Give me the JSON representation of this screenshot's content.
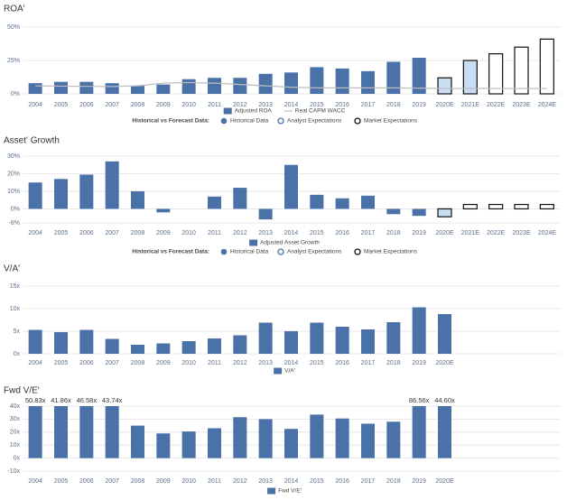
{
  "chart_data": [
    {
      "type": "bar",
      "title": "ROA'",
      "categories": [
        "2004",
        "2005",
        "2006",
        "2007",
        "2008",
        "2009",
        "2010",
        "2011",
        "2012",
        "2013",
        "2014",
        "2015",
        "2016",
        "2017",
        "2018",
        "2019",
        "2020E",
        "2021E",
        "2022E",
        "2023E",
        "2024E"
      ],
      "series": [
        {
          "name": "Adjusted ROA",
          "type": "bar",
          "color": "#4a71a8",
          "values": [
            8,
            9,
            9,
            8,
            6,
            7,
            11,
            12,
            12,
            15,
            16,
            20,
            19,
            17,
            24,
            27,
            12,
            25,
            30,
            35,
            41
          ],
          "bar_styles": [
            "historical",
            "historical",
            "historical",
            "historical",
            "historical",
            "historical",
            "historical",
            "historical",
            "historical",
            "historical",
            "historical",
            "historical",
            "historical",
            "historical",
            "historical",
            "historical",
            "analyst",
            "analyst",
            "market",
            "market",
            "market"
          ]
        },
        {
          "name": "Real CAPM WACC",
          "type": "line",
          "color": "#bdbdbd",
          "values": [
            6,
            5.8,
            5.6,
            5.5,
            6,
            8,
            8.5,
            8,
            7,
            6,
            5,
            4.5,
            4.5,
            4.5,
            4.5,
            4.3,
            4,
            4,
            4,
            4,
            4
          ]
        }
      ],
      "ylim": [
        0,
        50
      ],
      "yticks": [
        {
          "value": 0,
          "label": "0%"
        },
        {
          "value": 25,
          "label": "25%"
        },
        {
          "value": 50,
          "label": "50%"
        }
      ],
      "grid": true,
      "forecast_legend": {
        "label": "Historical vs Forecast Data:",
        "items": [
          "Historical Data",
          "Analyst Expectations",
          "Market Expectations"
        ]
      }
    },
    {
      "type": "bar",
      "title": "Asset' Growth",
      "categories": [
        "2004",
        "2005",
        "2006",
        "2007",
        "2008",
        "2009",
        "2010",
        "2011",
        "2012",
        "2013",
        "2014",
        "2015",
        "2016",
        "2017",
        "2018",
        "2019",
        "2020E",
        "2021E",
        "2022E",
        "2023E",
        "2024E"
      ],
      "series": [
        {
          "name": "Adjusted Asset Growth",
          "type": "bar",
          "color": "#4a71a8",
          "values": [
            15,
            17,
            19.5,
            27,
            10,
            -2,
            0,
            7,
            12,
            -6,
            25,
            8,
            6,
            7.5,
            -3,
            -4,
            -4.5,
            2.5,
            2.5,
            2.5,
            2.5
          ],
          "bar_styles": [
            "historical",
            "historical",
            "historical",
            "historical",
            "historical",
            "historical",
            "historical",
            "historical",
            "historical",
            "historical",
            "historical",
            "historical",
            "historical",
            "historical",
            "historical",
            "historical",
            "analyst",
            "market",
            "market",
            "market",
            "market"
          ]
        }
      ],
      "ylim": [
        -8,
        30
      ],
      "yticks": [
        {
          "value": -8,
          "label": "-8%"
        },
        {
          "value": 0,
          "label": "0%"
        },
        {
          "value": 10,
          "label": "10%"
        },
        {
          "value": 20,
          "label": "20%"
        },
        {
          "value": 30,
          "label": "30%"
        }
      ],
      "grid": true,
      "forecast_legend": {
        "label": "Historical vs Forecast Data:",
        "items": [
          "Historical Data",
          "Analyst Expectations",
          "Market Expectations"
        ]
      }
    },
    {
      "type": "bar",
      "title": "V/A'",
      "categories": [
        "2004",
        "2005",
        "2006",
        "2007",
        "2008",
        "2009",
        "2010",
        "2011",
        "2012",
        "2013",
        "2014",
        "2015",
        "2016",
        "2017",
        "2018",
        "2019",
        "2020E",
        null,
        null,
        null,
        null
      ],
      "series": [
        {
          "name": "V/A'",
          "type": "bar",
          "color": "#4a71a8",
          "values": [
            5.3,
            4.8,
            5.3,
            3.3,
            2,
            2.3,
            2.8,
            3.4,
            4.1,
            6.9,
            5,
            6.9,
            6,
            5.4,
            7,
            10.3,
            8.8,
            null,
            null,
            null,
            null
          ]
        }
      ],
      "ylim": [
        0,
        15
      ],
      "yticks": [
        {
          "value": 0,
          "label": "0x"
        },
        {
          "value": 5,
          "label": "5x"
        },
        {
          "value": 10,
          "label": "10x"
        },
        {
          "value": 15,
          "label": "15x"
        }
      ],
      "grid": true
    },
    {
      "type": "bar",
      "title": "Fwd V/E'",
      "categories": [
        "2004",
        "2005",
        "2006",
        "2007",
        "2008",
        "2009",
        "2010",
        "2011",
        "2012",
        "2013",
        "2014",
        "2015",
        "2016",
        "2017",
        "2018",
        "2019",
        "2020E",
        null,
        null,
        null,
        null
      ],
      "series": [
        {
          "name": "Fwd V/E'",
          "type": "bar",
          "color": "#4a71a8",
          "values": [
            50.83,
            41.86,
            46.58,
            43.74,
            25,
            19,
            20.5,
            23,
            31.5,
            30,
            22.5,
            33.5,
            30.5,
            26.5,
            28,
            86.56,
            44.6,
            null,
            null,
            null,
            null
          ],
          "value_labels": [
            "50.83x",
            "41.86x",
            "46.58x",
            "43.74x",
            null,
            null,
            null,
            null,
            null,
            null,
            null,
            null,
            null,
            null,
            null,
            "86.56x",
            "44.60x",
            null,
            null,
            null,
            null
          ]
        }
      ],
      "ylim": [
        -10,
        40
      ],
      "yticks": [
        {
          "value": -10,
          "label": "-10x"
        },
        {
          "value": 0,
          "label": "0x"
        },
        {
          "value": 10,
          "label": "10x"
        },
        {
          "value": 20,
          "label": "20x"
        },
        {
          "value": 30,
          "label": "30x"
        },
        {
          "value": 40,
          "label": "40x"
        }
      ],
      "grid": true
    }
  ]
}
